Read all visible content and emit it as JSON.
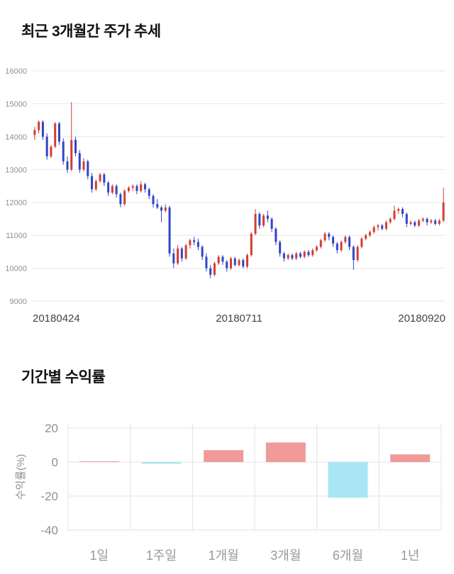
{
  "sections": {
    "price_title": "최근 3개월간 주가 추세",
    "returns_title": "기간별 수익률"
  },
  "chart_data": [
    {
      "type": "candlestick",
      "title": "최근 3개월간 주가 추세",
      "ylim": [
        9000,
        16000
      ],
      "y_ticks": [
        16000,
        15000,
        14000,
        13000,
        12000,
        11000,
        10000,
        9000
      ],
      "x_tick_labels": [
        "20180424",
        "20180711",
        "20180920"
      ],
      "up_color": "#d43c32",
      "down_color": "#2f45c8",
      "grid_color": "#e7e7e7",
      "tick_label_color": "#909090",
      "x_label_color": "#444444",
      "candles": [
        [
          14050,
          14300,
          13900,
          14200
        ],
        [
          14200,
          14500,
          14100,
          14450
        ],
        [
          14450,
          14500,
          13900,
          14000
        ],
        [
          14000,
          14100,
          13300,
          13400
        ],
        [
          13400,
          13750,
          13350,
          13700
        ],
        [
          13700,
          14450,
          13650,
          14400
        ],
        [
          14400,
          14450,
          13750,
          13850
        ],
        [
          13850,
          13950,
          13150,
          13250
        ],
        [
          13250,
          13400,
          12900,
          13000
        ],
        [
          13000,
          15050,
          12950,
          13900
        ],
        [
          13900,
          14000,
          13400,
          13500
        ],
        [
          13500,
          13600,
          12900,
          13000
        ],
        [
          13000,
          13350,
          12950,
          13250
        ],
        [
          13250,
          13300,
          12700,
          12800
        ],
        [
          12800,
          12900,
          12300,
          12400
        ],
        [
          12400,
          12700,
          12350,
          12650
        ],
        [
          12650,
          12900,
          12600,
          12850
        ],
        [
          12850,
          12900,
          12500,
          12600
        ],
        [
          12600,
          12650,
          12200,
          12300
        ],
        [
          12300,
          12550,
          12250,
          12500
        ],
        [
          12500,
          12550,
          12150,
          12250
        ],
        [
          12250,
          12300,
          11850,
          11950
        ],
        [
          11950,
          12400,
          11900,
          12350
        ],
        [
          12350,
          12500,
          12300,
          12450
        ],
        [
          12450,
          12550,
          12350,
          12500
        ],
        [
          12500,
          12550,
          12250,
          12350
        ],
        [
          12350,
          12650,
          12300,
          12550
        ],
        [
          12550,
          12600,
          12300,
          12400
        ],
        [
          12400,
          12450,
          12100,
          12200
        ],
        [
          12200,
          12250,
          11850,
          11950
        ],
        [
          11950,
          12100,
          11800,
          11850
        ],
        [
          11850,
          11900,
          11400,
          11750
        ],
        [
          11750,
          11950,
          11700,
          11850
        ],
        [
          11850,
          11900,
          10350,
          10450
        ],
        [
          10450,
          10600,
          10000,
          10150
        ],
        [
          10150,
          10700,
          10100,
          10600
        ],
        [
          10600,
          10650,
          10200,
          10300
        ],
        [
          10300,
          10750,
          10250,
          10700
        ],
        [
          10700,
          10900,
          10600,
          10850
        ],
        [
          10850,
          10950,
          10700,
          10800
        ],
        [
          10800,
          10900,
          10550,
          10650
        ],
        [
          10650,
          10700,
          10250,
          10350
        ],
        [
          10350,
          10450,
          9900,
          10000
        ],
        [
          10000,
          10100,
          9700,
          9800
        ],
        [
          9800,
          10200,
          9750,
          10150
        ],
        [
          10150,
          10400,
          10100,
          10350
        ],
        [
          10350,
          10400,
          10100,
          10200
        ],
        [
          10200,
          10250,
          9900,
          10000
        ],
        [
          10000,
          10350,
          9950,
          10300
        ],
        [
          10300,
          10350,
          10050,
          10100
        ],
        [
          10100,
          10300,
          10050,
          10250
        ],
        [
          10250,
          10300,
          10000,
          10050
        ],
        [
          10050,
          10450,
          10000,
          10400
        ],
        [
          10400,
          11100,
          10350,
          11050
        ],
        [
          11050,
          11800,
          11000,
          11650
        ],
        [
          11650,
          11700,
          11200,
          11300
        ],
        [
          11300,
          11650,
          11250,
          11600
        ],
        [
          11600,
          11750,
          11400,
          11500
        ],
        [
          11500,
          11550,
          11100,
          11200
        ],
        [
          11200,
          11250,
          10700,
          10800
        ],
        [
          10800,
          10850,
          10350,
          10450
        ],
        [
          10450,
          10500,
          10200,
          10300
        ],
        [
          10300,
          10450,
          10250,
          10400
        ],
        [
          10400,
          10450,
          10250,
          10300
        ],
        [
          10300,
          10500,
          10250,
          10450
        ],
        [
          10450,
          10500,
          10300,
          10350
        ],
        [
          10350,
          10550,
          10300,
          10500
        ],
        [
          10500,
          10550,
          10350,
          10400
        ],
        [
          10400,
          10600,
          10350,
          10550
        ],
        [
          10550,
          10700,
          10500,
          10650
        ],
        [
          10650,
          10900,
          10600,
          10850
        ],
        [
          10850,
          11100,
          10800,
          11050
        ],
        [
          11050,
          11100,
          10850,
          10950
        ],
        [
          10950,
          11000,
          10650,
          10750
        ],
        [
          10750,
          10800,
          10450,
          10550
        ],
        [
          10550,
          10850,
          10500,
          10800
        ],
        [
          10800,
          11000,
          10750,
          10950
        ],
        [
          10950,
          11000,
          10550,
          10650
        ],
        [
          10650,
          10700,
          9950,
          10250
        ],
        [
          10250,
          10700,
          10200,
          10650
        ],
        [
          10650,
          10950,
          10600,
          10900
        ],
        [
          10900,
          11050,
          10850,
          11000
        ],
        [
          11000,
          11150,
          10950,
          11100
        ],
        [
          11100,
          11300,
          11050,
          11250
        ],
        [
          11250,
          11350,
          11150,
          11300
        ],
        [
          11300,
          11350,
          11150,
          11200
        ],
        [
          11200,
          11450,
          11150,
          11400
        ],
        [
          11400,
          11550,
          11350,
          11500
        ],
        [
          11500,
          11900,
          11450,
          11750
        ],
        [
          11750,
          11850,
          11650,
          11800
        ],
        [
          11800,
          11850,
          11550,
          11650
        ],
        [
          11650,
          11700,
          11250,
          11350
        ],
        [
          11350,
          11450,
          11300,
          11400
        ],
        [
          11400,
          11450,
          11250,
          11300
        ],
        [
          11300,
          11500,
          11250,
          11450
        ],
        [
          11450,
          11550,
          11400,
          11500
        ],
        [
          11500,
          11550,
          11300,
          11400
        ],
        [
          11400,
          11500,
          11350,
          11450
        ],
        [
          11450,
          11500,
          11300,
          11350
        ],
        [
          11350,
          11500,
          11300,
          11450
        ],
        [
          11450,
          12450,
          11400,
          12000
        ]
      ]
    },
    {
      "type": "bar",
      "title": "기간별 수익률",
      "categories": [
        "1일",
        "1주일",
        "1개월",
        "3개월",
        "6개월",
        "1년"
      ],
      "values": [
        0,
        -1,
        7,
        11.5,
        -21,
        4.5
      ],
      "ylabel": "수익률(%)",
      "ylim": [
        -40,
        20
      ],
      "y_ticks": [
        20,
        0,
        -20,
        -40
      ],
      "positive_color": "#f09a9a",
      "negative_color": "#a9e6f3",
      "grid_color": "#e3e3e3",
      "tick_label_color": "#8f8f8f",
      "category_label_color": "#999999"
    }
  ]
}
